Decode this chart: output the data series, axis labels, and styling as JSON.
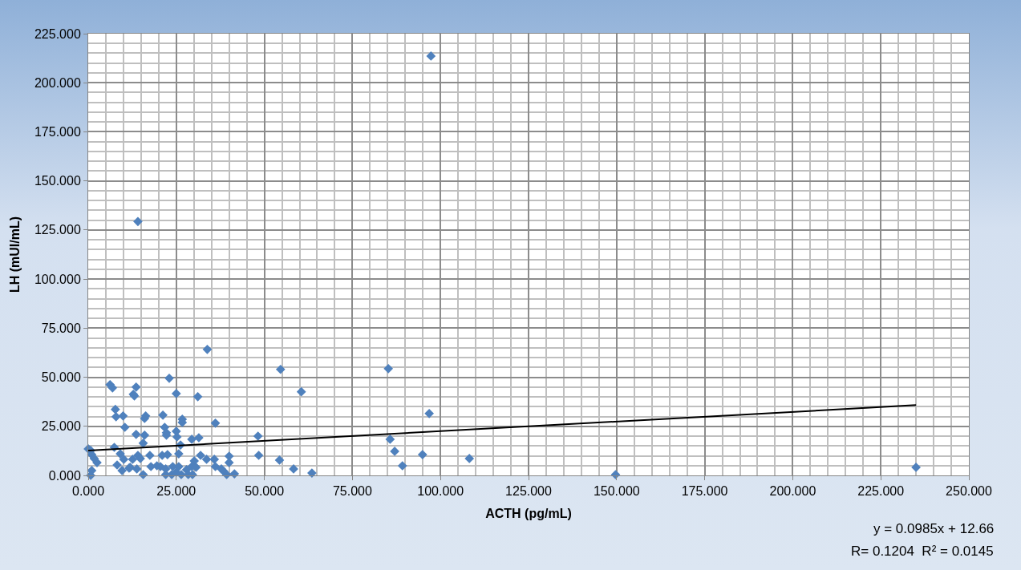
{
  "chart_data": {
    "type": "scatter",
    "xlabel": "ACTH (pg/mL)",
    "ylabel": "LH (mUI/mL)",
    "xlim": [
      0,
      250
    ],
    "ylim": [
      0,
      225
    ],
    "xticks": [
      {
        "value": 0,
        "label": "0.000"
      },
      {
        "value": 25,
        "label": "25.000"
      },
      {
        "value": 50,
        "label": "50.000"
      },
      {
        "value": 75,
        "label": "75.000"
      },
      {
        "value": 100,
        "label": "100.000"
      },
      {
        "value": 125,
        "label": "125.000"
      },
      {
        "value": 150,
        "label": "150.000"
      },
      {
        "value": 175,
        "label": "175.000"
      },
      {
        "value": 200,
        "label": "200.000"
      },
      {
        "value": 225,
        "label": "225.000"
      },
      {
        "value": 250,
        "label": "250.000"
      }
    ],
    "yticks": [
      {
        "value": 0,
        "label": "0.000"
      },
      {
        "value": 25,
        "label": "25.000"
      },
      {
        "value": 50,
        "label": "50.000"
      },
      {
        "value": 75,
        "label": "75.000"
      },
      {
        "value": 100,
        "label": "100.000"
      },
      {
        "value": 125,
        "label": "125.000"
      },
      {
        "value": 150,
        "label": "150.000"
      },
      {
        "value": 175,
        "label": "175.000"
      },
      {
        "value": 200,
        "label": "200.000"
      },
      {
        "value": 225,
        "label": "225.000"
      }
    ],
    "grid": true,
    "marker": "diamond",
    "series": [
      {
        "color": "#4f81bd",
        "x": [
          0,
          0.7,
          1,
          1.7,
          2.5,
          1,
          0.7,
          6.2,
          6.9,
          7.7,
          7.9,
          9.9,
          10.4,
          7.4,
          9.1,
          10.1,
          8.2,
          9.6,
          12.6,
          11.6,
          13.6,
          12.8,
          13.1,
          16,
          16.3,
          13.6,
          16,
          15.6,
          14.1,
          14.8,
          11.9,
          13.8,
          15.6,
          17.5,
          17.8,
          19.5,
          21.2,
          21.7,
          22.2,
          22.2,
          23,
          21,
          22.5,
          20.5,
          22,
          22,
          23.7,
          24,
          25,
          25,
          25.2,
          26.2,
          25.7,
          25.7,
          26.4,
          26.7,
          26.7,
          25,
          27.9,
          28.4,
          29.4,
          29.4,
          31.1,
          31.4,
          30.1,
          30.6,
          29.6,
          31.9,
          33.6,
          33.8,
          36.1,
          35.8,
          36.1,
          37.8,
          38.5,
          40,
          40,
          39.3,
          41.5,
          48.2,
          48.4,
          54.6,
          54.3,
          58.3,
          60.5,
          63.5,
          14.1,
          85.2,
          96.8,
          85.7,
          87,
          89.2,
          94.9,
          108.2,
          149.7,
          97.3,
          235
        ],
        "values": [
          13.5,
          12.7,
          10.6,
          8.6,
          6.5,
          2.5,
          0,
          46.2,
          44.6,
          33.6,
          29.9,
          30.3,
          24.5,
          14.3,
          11,
          8.2,
          5.3,
          2.5,
          8.2,
          3.7,
          45,
          41.3,
          40.5,
          29,
          30.3,
          20.9,
          20.5,
          16.4,
          10.2,
          8.6,
          4.1,
          3.3,
          0.4,
          10.2,
          4.5,
          4.9,
          30.7,
          24.5,
          21.7,
          20.5,
          49.5,
          10.2,
          10.6,
          4.5,
          3.3,
          0.4,
          0.4,
          4.5,
          41.7,
          22.5,
          19.6,
          15.5,
          11,
          4.5,
          0.4,
          28.6,
          27,
          1.6,
          2.9,
          0.4,
          18.4,
          4.5,
          40.1,
          19.2,
          7.4,
          4.1,
          0.4,
          10.2,
          8.2,
          64.2,
          26.6,
          8.2,
          4.5,
          3.3,
          2,
          9.8,
          6.5,
          0.4,
          0.8,
          20,
          10.2,
          54,
          7.8,
          3.3,
          42.6,
          1.2,
          129.3,
          54.4,
          31.5,
          18.4,
          12.3,
          4.9,
          10.6,
          8.6,
          0.4,
          213.6,
          4.1
        ]
      },
      {
        "type": "line",
        "marker": "none",
        "color": "#000000",
        "x": [
          0,
          235
        ],
        "values": [
          12.7,
          35.8
        ]
      }
    ],
    "annotations": [
      "y = 0.0985x + 12.66",
      "R= 0.1204  R² = 0.0145"
    ]
  }
}
